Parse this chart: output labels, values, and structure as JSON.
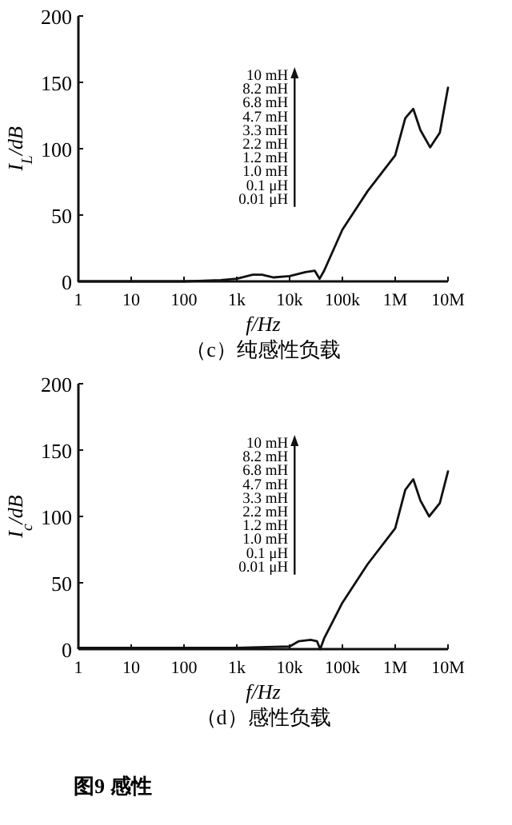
{
  "chart_data": [
    {
      "type": "line",
      "title": "（c）纯感性负载",
      "xlabel": "f/Hz",
      "ylabel": "I$_{L}$/dB",
      "log": "x",
      "xlim": [
        1,
        10000000
      ],
      "xticks": [
        {
          "value": 1,
          "label": "1"
        },
        {
          "value": 10,
          "label": "10"
        },
        {
          "value": 100,
          "label": "100"
        },
        {
          "value": 1000,
          "label": "1k"
        },
        {
          "value": 10000,
          "label": "10k"
        },
        {
          "value": 100000,
          "label": "100k"
        },
        {
          "value": 1000000,
          "label": "1M"
        },
        {
          "value": 10000000,
          "label": "10M"
        }
      ],
      "ylim": [
        0,
        200
      ],
      "yticks": [
        0,
        50,
        100,
        150,
        200
      ],
      "annotations": [
        "10 mH",
        "8.2 mH",
        "6.8 mH",
        "4.7 mH",
        "3.3 mH",
        "2.2 mH",
        "1.2 mH",
        "1.0 mH",
        "0.1 μH",
        "0.01 μH"
      ],
      "series": [
        {
          "color": "#111111",
          "x": [
            1,
            100,
            500,
            1000,
            2000,
            3000,
            5000,
            10000,
            20000,
            30000,
            37000,
            45000,
            100000,
            300000,
            1000000,
            1550000,
            2200000,
            3000000,
            4600000,
            7000000,
            10000000
          ],
          "values": [
            0,
            0,
            1,
            2,
            5,
            5,
            3,
            4,
            7,
            8,
            2,
            8,
            39,
            68,
            95,
            123,
            130,
            114,
            101,
            112,
            146
          ]
        }
      ]
    },
    {
      "type": "line",
      "title": "（d）感性负载",
      "xlabel": "f/Hz",
      "ylabel": "I$_{c}$/dB",
      "log": "x",
      "xlim": [
        1,
        10000000
      ],
      "xticks": [
        {
          "value": 1,
          "label": "1"
        },
        {
          "value": 10,
          "label": "10"
        },
        {
          "value": 100,
          "label": "100"
        },
        {
          "value": 1000,
          "label": "1k"
        },
        {
          "value": 10000,
          "label": "10k"
        },
        {
          "value": 100000,
          "label": "100k"
        },
        {
          "value": 1000000,
          "label": "1M"
        },
        {
          "value": 10000000,
          "label": "10M"
        }
      ],
      "ylim": [
        0,
        200
      ],
      "yticks": [
        0,
        50,
        100,
        150,
        200
      ],
      "annotations": [
        "10 mH",
        "8.2 mH",
        "6.8 mH",
        "4.7 mH",
        "3.3 mH",
        "2.2 mH",
        "1.2 mH",
        "1.0 mH",
        "0.1 μH",
        "0.01 μH"
      ],
      "series": [
        {
          "color": "#111111",
          "x": [
            1,
            100,
            1000,
            10000,
            15000,
            25000,
            33000,
            38000,
            45000,
            100000,
            300000,
            1000000,
            1550000,
            2200000,
            3000000,
            4400000,
            7000000,
            10000000
          ],
          "values": [
            1,
            1,
            1,
            2,
            6,
            7,
            6,
            0,
            8,
            35,
            64,
            91,
            120,
            128,
            112,
            100,
            110,
            134
          ]
        }
      ]
    },
    {
      "type": "other",
      "title": "图9  感性"
    }
  ]
}
